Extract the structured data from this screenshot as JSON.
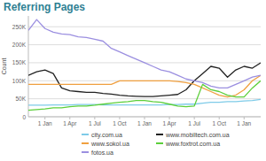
{
  "chart_data": {
    "type": "line",
    "title": "Referring Pages",
    "y_label": "Count",
    "categories": [
      null,
      null,
      "1 Jan",
      null,
      null,
      "1 Apr",
      null,
      null,
      "1 Jul",
      null,
      null,
      "1 Oct",
      null,
      null,
      "1 Jan",
      null,
      null,
      "1 Apr",
      null,
      null,
      "1 Jul",
      null,
      null,
      "1 Oct",
      null,
      null,
      "1 Jan",
      null,
      null
    ],
    "series": [
      {
        "name": "city.com.ua",
        "color": "#7ecbe8",
        "values": [
          32000,
          32000,
          32000,
          33000,
          33000,
          33000,
          34000,
          34000,
          34000,
          33000,
          33000,
          33000,
          33000,
          33000,
          33000,
          33000,
          33000,
          34000,
          34000,
          35000,
          35000,
          38000,
          40000,
          40000,
          42000,
          42000,
          44000,
          45000,
          48000
        ]
      },
      {
        "name": "www.mobiltech.com.ua",
        "color": "#222222",
        "values": [
          115000,
          125000,
          130000,
          120000,
          80000,
          72000,
          70000,
          68000,
          68000,
          65000,
          63000,
          60000,
          58000,
          57000,
          56000,
          56000,
          58000,
          60000,
          62000,
          75000,
          100000,
          120000,
          140000,
          135000,
          110000,
          130000,
          140000,
          135000,
          150000
        ]
      },
      {
        "name": "www.sokol.ua",
        "color": "#f0a040",
        "values": [
          90000,
          90000,
          90000,
          90000,
          90000,
          90000,
          90000,
          90000,
          90000,
          90000,
          90000,
          100000,
          100000,
          100000,
          100000,
          100000,
          100000,
          100000,
          98000,
          95000,
          90000,
          80000,
          70000,
          60000,
          55000,
          60000,
          75000,
          100000,
          115000
        ]
      },
      {
        "name": "www.foxtrot.com.ua",
        "color": "#5ccf3a",
        "values": [
          18000,
          20000,
          22000,
          25000,
          25000,
          28000,
          30000,
          30000,
          32000,
          35000,
          38000,
          40000,
          42000,
          45000,
          45000,
          42000,
          40000,
          35000,
          30000,
          28000,
          30000,
          90000,
          75000,
          70000,
          60000,
          55000,
          55000,
          80000,
          100000
        ]
      },
      {
        "name": "fotos.ua",
        "color": "#9b8fe0",
        "values": [
          240000,
          270000,
          245000,
          235000,
          230000,
          228000,
          222000,
          220000,
          215000,
          210000,
          190000,
          180000,
          170000,
          160000,
          150000,
          140000,
          130000,
          125000,
          115000,
          105000,
          100000,
          95000,
          85000,
          80000,
          80000,
          90000,
          100000,
          110000,
          115000
        ]
      }
    ],
    "ylim": [
      0,
      280000
    ],
    "yticks": [
      {
        "value": 0,
        "label": "0"
      },
      {
        "value": 50000,
        "label": "50K"
      },
      {
        "value": 100000,
        "label": "100K"
      },
      {
        "value": 150000,
        "label": "150K"
      },
      {
        "value": 200000,
        "label": "200K"
      },
      {
        "value": 250000,
        "label": "250K"
      }
    ],
    "grid": true,
    "legend": "bottom"
  }
}
